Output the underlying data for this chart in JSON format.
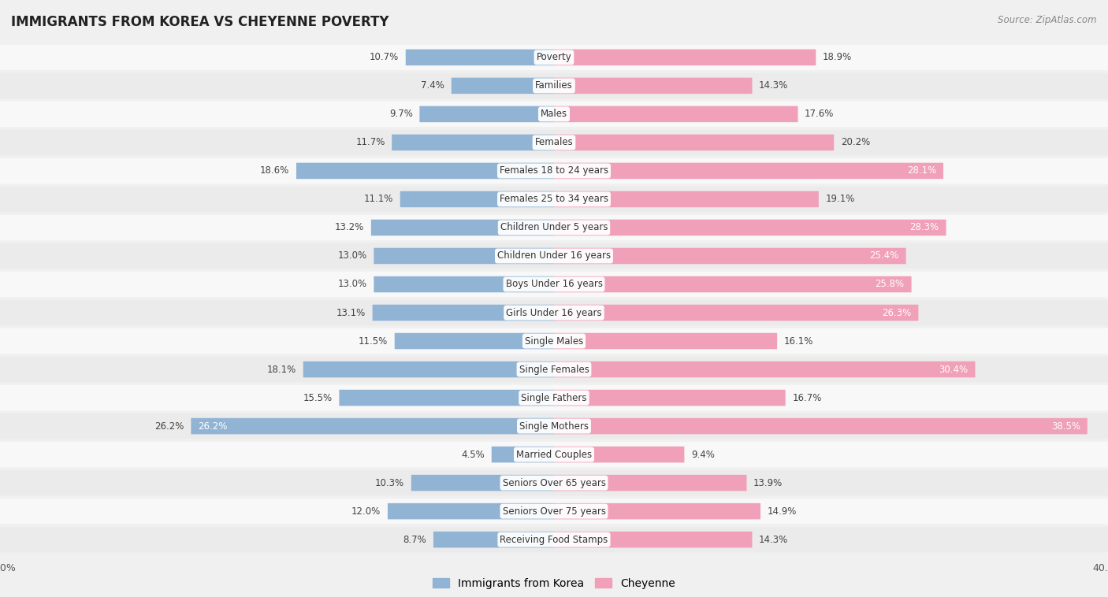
{
  "title": "IMMIGRANTS FROM KOREA VS CHEYENNE POVERTY",
  "source": "Source: ZipAtlas.com",
  "categories": [
    "Poverty",
    "Families",
    "Males",
    "Females",
    "Females 18 to 24 years",
    "Females 25 to 34 years",
    "Children Under 5 years",
    "Children Under 16 years",
    "Boys Under 16 years",
    "Girls Under 16 years",
    "Single Males",
    "Single Females",
    "Single Fathers",
    "Single Mothers",
    "Married Couples",
    "Seniors Over 65 years",
    "Seniors Over 75 years",
    "Receiving Food Stamps"
  ],
  "korea_values": [
    10.7,
    7.4,
    9.7,
    11.7,
    18.6,
    11.1,
    13.2,
    13.0,
    13.0,
    13.1,
    11.5,
    18.1,
    15.5,
    26.2,
    4.5,
    10.3,
    12.0,
    8.7
  ],
  "cheyenne_values": [
    18.9,
    14.3,
    17.6,
    20.2,
    28.1,
    19.1,
    28.3,
    25.4,
    25.8,
    26.3,
    16.1,
    30.4,
    16.7,
    38.5,
    9.4,
    13.9,
    14.9,
    14.3
  ],
  "korea_color": "#92b4d4",
  "cheyenne_color": "#f0a0b8",
  "background_color": "#f0f0f0",
  "row_color_light": "#f8f8f8",
  "row_color_dark": "#ebebeb",
  "axis_limit": 40.0,
  "legend_labels": [
    "Immigrants from Korea",
    "Cheyenne"
  ],
  "bar_height": 0.55
}
